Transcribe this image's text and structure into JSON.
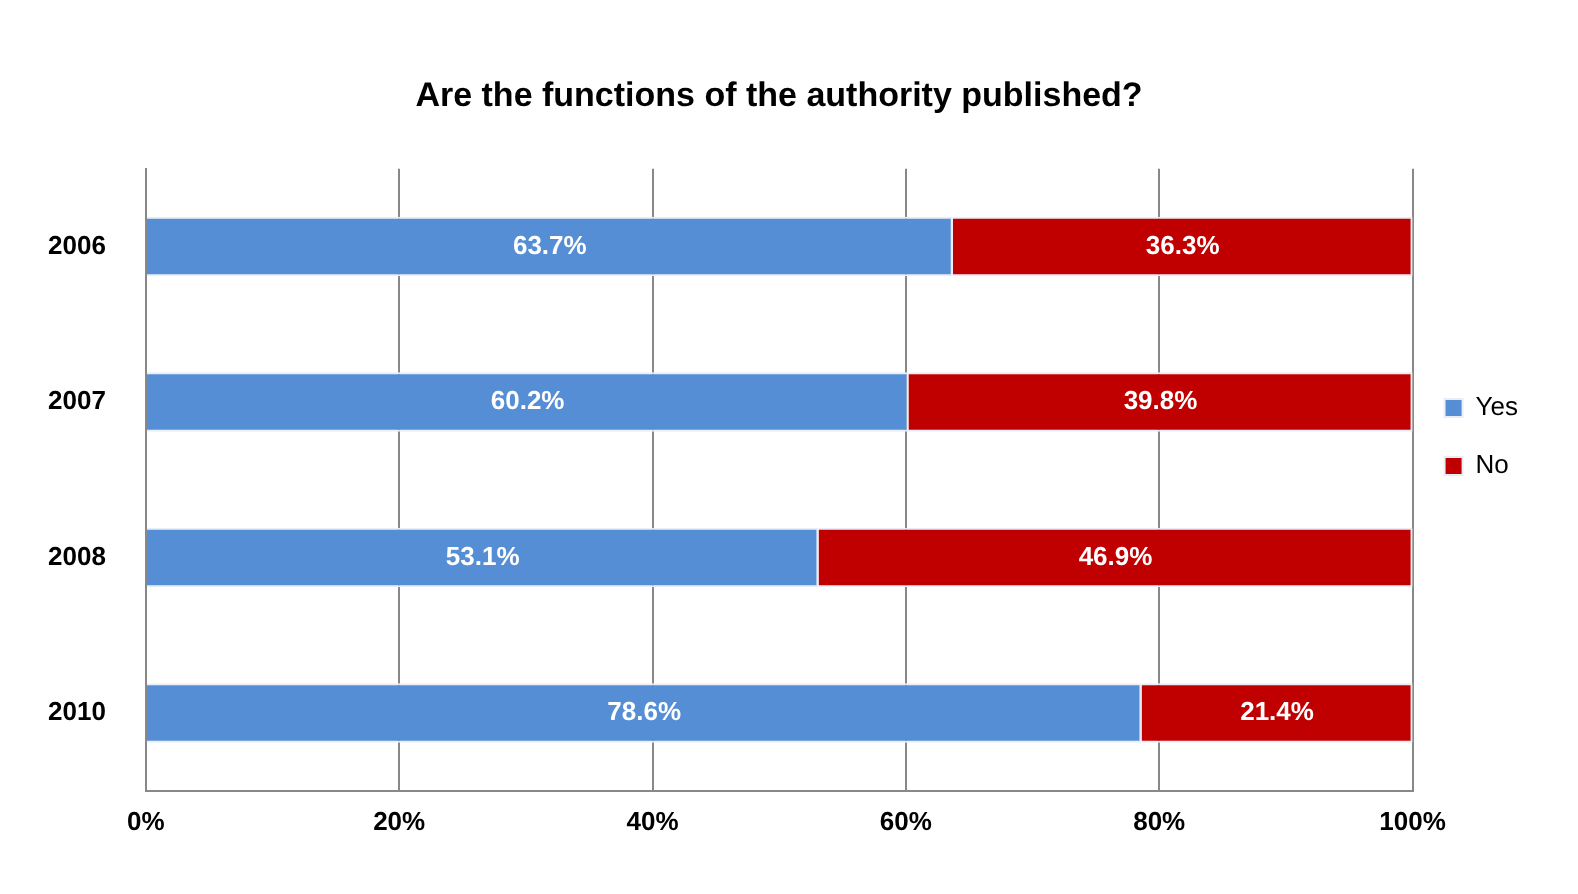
{
  "chart_data": {
    "type": "bar",
    "orientation": "horizontal",
    "stacked": true,
    "title": "Are the functions of the authority published?",
    "categories": [
      "2006",
      "2007",
      "2008",
      "2010"
    ],
    "series": [
      {
        "name": "Yes",
        "color": "#558ed5",
        "values": [
          63.7,
          60.2,
          53.1,
          78.6
        ],
        "value_labels": [
          "63.7%",
          "60.2%",
          "53.1%",
          "78.6%"
        ]
      },
      {
        "name": "No",
        "color": "#c00000",
        "values": [
          36.3,
          39.8,
          46.9,
          21.4
        ],
        "value_labels": [
          "36.3%",
          "39.8%",
          "46.9%",
          "21.4%"
        ]
      }
    ],
    "xlim": [
      0,
      100
    ],
    "xticks": [
      {
        "value": 0,
        "label": "0%"
      },
      {
        "value": 20,
        "label": "20%"
      },
      {
        "value": 40,
        "label": "40%"
      },
      {
        "value": 60,
        "label": "60%"
      },
      {
        "value": 80,
        "label": "80%"
      },
      {
        "value": 100,
        "label": "100%"
      }
    ],
    "grid": "x",
    "legend": "right"
  }
}
